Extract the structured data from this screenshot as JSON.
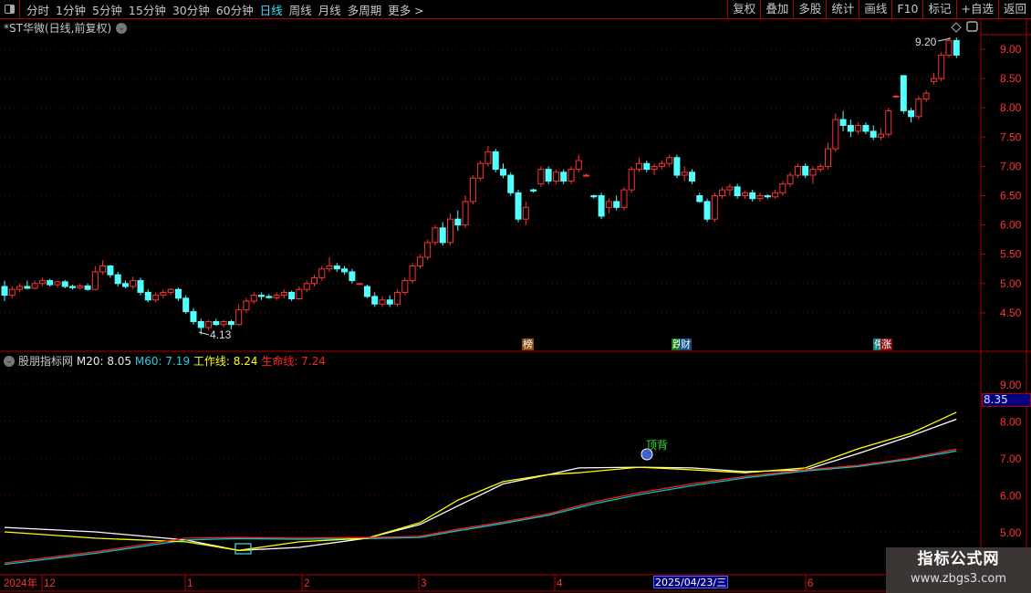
{
  "toolbar": {
    "timeframes": [
      "分时",
      "1分钟",
      "5分钟",
      "15分钟",
      "30分钟",
      "60分钟",
      "日线",
      "周线",
      "月线",
      "多周期",
      "更多 >"
    ],
    "active": "日线",
    "right_buttons": [
      "复权",
      "叠加",
      "多股",
      "统计",
      "画线",
      "F10",
      "标记",
      "+自选",
      "返回"
    ]
  },
  "stock_title": "*ST华微(日线,前复权)",
  "indicator": {
    "name": "股朋指标网",
    "m20_label": "M20: 8.05",
    "m60_label": "M60: 7.19",
    "work_label": "工作线: 8.24",
    "life_label": "生命线: 7.24",
    "signal_label": "顶背",
    "current_value": "8.35",
    "axis_labels": [
      "9.00",
      "8.00",
      "7.00",
      "6.00",
      "5.00"
    ]
  },
  "markers": [
    {
      "text": "榜",
      "color": "#8a4a10"
    },
    {
      "text": "跌",
      "color": "#107a10"
    },
    {
      "text": "财",
      "color": "#104a8a"
    },
    {
      "text": "停",
      "color": "#108080"
    },
    {
      "text": "涨",
      "color": "#8a1010"
    }
  ],
  "time_axis": {
    "labels": [
      "2024年",
      "12",
      "1",
      "2",
      "3",
      "4",
      "6"
    ],
    "cursor_date": "2025/04/23/三"
  },
  "watermark": {
    "line1": "指标公式网",
    "line2": "www.zbgs3.com"
  },
  "colors": {
    "up": "#ff3232",
    "down": "#54ffff",
    "m20": "#ffffff",
    "m60": "#00c8c8",
    "work": "#ffff00",
    "life": "#ff2020",
    "grid": "#b00000"
  },
  "chart_data": [
    {
      "type": "candlestick",
      "title": "*ST华微(日线,前复权)",
      "ylim": [
        4.13,
        9.2
      ],
      "y_ticks": [
        "9.00",
        "8.50",
        "8.00",
        "7.50",
        "7.00",
        "6.50",
        "6.00",
        "5.50",
        "5.00",
        "4.50"
      ],
      "high_label": "9.20",
      "low_label": "4.13",
      "ohlc": [
        [
          4.95,
          5.05,
          4.7,
          4.8
        ],
        [
          4.8,
          4.95,
          4.75,
          4.9
        ],
        [
          4.9,
          5.0,
          4.85,
          4.95
        ],
        [
          4.95,
          5.05,
          4.9,
          4.92
        ],
        [
          4.92,
          5.05,
          4.9,
          5.0
        ],
        [
          5.0,
          5.1,
          4.95,
          5.05
        ],
        [
          5.05,
          5.08,
          4.95,
          4.98
        ],
        [
          4.98,
          5.05,
          4.93,
          5.03
        ],
        [
          5.03,
          5.06,
          4.92,
          4.95
        ],
        [
          4.95,
          4.98,
          4.9,
          4.93
        ],
        [
          4.93,
          5.0,
          4.9,
          4.96
        ],
        [
          4.96,
          5.0,
          4.88,
          4.9
        ],
        [
          4.9,
          5.3,
          4.88,
          5.2
        ],
        [
          5.2,
          5.4,
          5.15,
          5.3
        ],
        [
          5.3,
          5.32,
          5.1,
          5.15
        ],
        [
          5.15,
          5.2,
          4.95,
          5.0
        ],
        [
          5.0,
          5.05,
          4.92,
          4.95
        ],
        [
          4.95,
          5.12,
          4.9,
          5.05
        ],
        [
          5.05,
          5.1,
          4.8,
          4.85
        ],
        [
          4.85,
          4.9,
          4.68,
          4.72
        ],
        [
          4.72,
          4.85,
          4.68,
          4.8
        ],
        [
          4.8,
          4.9,
          4.75,
          4.85
        ],
        [
          4.85,
          4.92,
          4.8,
          4.9
        ],
        [
          4.9,
          4.93,
          4.7,
          4.75
        ],
        [
          4.75,
          4.8,
          4.48,
          4.52
        ],
        [
          4.52,
          4.58,
          4.3,
          4.35
        ],
        [
          4.35,
          4.4,
          4.13,
          4.25
        ],
        [
          4.25,
          4.38,
          4.2,
          4.35
        ],
        [
          4.35,
          4.4,
          4.28,
          4.3
        ],
        [
          4.3,
          4.38,
          4.25,
          4.35
        ],
        [
          4.35,
          4.38,
          4.22,
          4.3
        ],
        [
          4.3,
          4.65,
          4.28,
          4.55
        ],
        [
          4.55,
          4.75,
          4.5,
          4.7
        ],
        [
          4.7,
          4.85,
          4.65,
          4.8
        ],
        [
          4.8,
          4.85,
          4.72,
          4.78
        ],
        [
          4.78,
          4.82,
          4.74,
          4.76
        ],
        [
          4.76,
          4.85,
          4.72,
          4.8
        ],
        [
          4.8,
          4.9,
          4.75,
          4.85
        ],
        [
          4.85,
          4.88,
          4.7,
          4.74
        ],
        [
          4.74,
          4.95,
          4.72,
          4.9
        ],
        [
          4.9,
          5.05,
          4.85,
          5.0
        ],
        [
          5.0,
          5.15,
          4.95,
          5.1
        ],
        [
          5.1,
          5.3,
          5.05,
          5.25
        ],
        [
          5.25,
          5.45,
          5.2,
          5.3
        ],
        [
          5.3,
          5.35,
          5.2,
          5.25
        ],
        [
          5.25,
          5.3,
          5.15,
          5.2
        ],
        [
          5.2,
          5.25,
          5.0,
          5.05
        ],
        [
          5.0,
          5.0,
          4.98,
          5.0
        ],
        [
          4.95,
          4.98,
          4.75,
          4.78
        ],
        [
          4.78,
          4.85,
          4.6,
          4.65
        ],
        [
          4.65,
          4.78,
          4.6,
          4.72
        ],
        [
          4.72,
          4.8,
          4.6,
          4.65
        ],
        [
          4.65,
          4.9,
          4.6,
          4.85
        ],
        [
          4.85,
          5.1,
          4.8,
          5.05
        ],
        [
          5.05,
          5.35,
          5.0,
          5.3
        ],
        [
          5.3,
          5.5,
          5.25,
          5.45
        ],
        [
          5.45,
          5.75,
          5.4,
          5.7
        ],
        [
          5.7,
          6.0,
          5.65,
          5.95
        ],
        [
          5.95,
          6.05,
          5.65,
          5.7
        ],
        [
          5.7,
          6.2,
          5.65,
          6.1
        ],
        [
          6.1,
          6.25,
          5.9,
          6.0
        ],
        [
          6.0,
          6.5,
          5.95,
          6.4
        ],
        [
          6.4,
          6.85,
          6.35,
          6.8
        ],
        [
          6.8,
          7.1,
          6.75,
          7.05
        ],
        [
          7.05,
          7.35,
          7.0,
          7.25
        ],
        [
          7.25,
          7.3,
          6.9,
          6.95
        ],
        [
          6.95,
          7.05,
          6.8,
          6.85
        ],
        [
          6.85,
          6.9,
          6.5,
          6.55
        ],
        [
          6.55,
          6.6,
          6.05,
          6.1
        ],
        [
          6.1,
          6.4,
          6.0,
          6.3
        ],
        [
          6.6,
          6.62,
          6.55,
          6.58
        ],
        [
          6.7,
          7.0,
          6.65,
          6.95
        ],
        [
          6.95,
          7.0,
          6.7,
          6.75
        ],
        [
          6.75,
          6.95,
          6.7,
          6.9
        ],
        [
          6.9,
          6.95,
          6.7,
          6.75
        ],
        [
          6.75,
          7.0,
          6.7,
          6.95
        ],
        [
          6.95,
          7.2,
          6.9,
          7.1
        ],
        [
          6.85,
          6.88,
          6.82,
          6.85
        ],
        [
          6.5,
          6.52,
          6.45,
          6.48
        ],
        [
          6.5,
          6.55,
          6.1,
          6.15
        ],
        [
          6.3,
          6.45,
          6.2,
          6.4
        ],
        [
          6.4,
          6.5,
          6.25,
          6.3
        ],
        [
          6.3,
          6.65,
          6.25,
          6.6
        ],
        [
          6.6,
          7.0,
          6.55,
          6.95
        ],
        [
          6.95,
          7.15,
          6.9,
          7.05
        ],
        [
          7.05,
          7.1,
          6.9,
          6.95
        ],
        [
          6.95,
          7.05,
          6.85,
          7.0
        ],
        [
          7.0,
          7.1,
          6.95,
          7.05
        ],
        [
          7.05,
          7.2,
          7.0,
          7.15
        ],
        [
          7.15,
          7.2,
          6.8,
          6.85
        ],
        [
          6.85,
          7.0,
          6.75,
          6.9
        ],
        [
          6.9,
          6.95,
          6.7,
          6.75
        ],
        [
          6.5,
          6.55,
          6.38,
          6.4
        ],
        [
          6.4,
          6.45,
          6.05,
          6.1
        ],
        [
          6.1,
          6.55,
          6.05,
          6.5
        ],
        [
          6.5,
          6.65,
          6.45,
          6.6
        ],
        [
          6.6,
          6.7,
          6.5,
          6.65
        ],
        [
          6.65,
          6.7,
          6.45,
          6.5
        ],
        [
          6.5,
          6.58,
          6.45,
          6.55
        ],
        [
          6.55,
          6.6,
          6.4,
          6.45
        ],
        [
          6.45,
          6.55,
          6.4,
          6.5
        ],
        [
          6.5,
          6.52,
          6.45,
          6.48
        ],
        [
          6.48,
          6.6,
          6.45,
          6.55
        ],
        [
          6.55,
          6.75,
          6.5,
          6.7
        ],
        [
          6.7,
          6.9,
          6.65,
          6.85
        ],
        [
          6.85,
          7.05,
          6.8,
          7.0
        ],
        [
          7.0,
          7.05,
          6.8,
          6.85
        ],
        [
          6.85,
          7.0,
          6.7,
          6.95
        ],
        [
          6.95,
          7.05,
          6.9,
          7.0
        ],
        [
          7.0,
          7.4,
          6.95,
          7.3
        ],
        [
          7.3,
          7.9,
          7.25,
          7.8
        ],
        [
          7.8,
          7.95,
          7.6,
          7.7
        ],
        [
          7.7,
          7.8,
          7.5,
          7.6
        ],
        [
          7.6,
          7.75,
          7.55,
          7.7
        ],
        [
          7.7,
          7.75,
          7.55,
          7.6
        ],
        [
          7.6,
          7.7,
          7.45,
          7.5
        ],
        [
          7.5,
          7.65,
          7.45,
          7.55
        ],
        [
          7.55,
          8.0,
          7.5,
          7.95
        ],
        [
          8.2,
          8.22,
          8.18,
          8.2
        ],
        [
          8.55,
          8.55,
          7.9,
          7.95
        ],
        [
          7.95,
          8.0,
          7.75,
          7.85
        ],
        [
          7.85,
          8.2,
          7.8,
          8.15
        ],
        [
          8.15,
          8.3,
          8.1,
          8.25
        ],
        [
          8.45,
          8.6,
          8.4,
          8.5
        ],
        [
          8.5,
          8.95,
          8.45,
          8.9
        ],
        [
          8.9,
          9.2,
          8.85,
          9.15
        ],
        [
          9.15,
          9.2,
          8.85,
          8.9
        ]
      ]
    },
    {
      "type": "line",
      "ylim": [
        4.5,
        9.5
      ],
      "series": [
        {
          "name": "M20",
          "color": "#ffffff",
          "points": [
            [
              0,
              5.12
            ],
            [
              12,
              5.0
            ],
            [
              24,
              4.78
            ],
            [
              31,
              4.5
            ],
            [
              39,
              4.58
            ],
            [
              48,
              4.83
            ],
            [
              55,
              5.2
            ],
            [
              60,
              5.7
            ],
            [
              66,
              6.3
            ],
            [
              72,
              6.55
            ],
            [
              76,
              6.73
            ],
            [
              84,
              6.75
            ],
            [
              91,
              6.73
            ],
            [
              98,
              6.63
            ],
            [
              106,
              6.68
            ],
            [
              113,
              7.12
            ],
            [
              120,
              7.6
            ],
            [
              126,
              8.05
            ]
          ]
        },
        {
          "name": "M60",
          "color": "#00c8c8",
          "points": [
            [
              0,
              4.12
            ],
            [
              12,
              4.42
            ],
            [
              24,
              4.78
            ],
            [
              31,
              4.82
            ],
            [
              39,
              4.8
            ],
            [
              48,
              4.82
            ],
            [
              55,
              4.85
            ],
            [
              60,
              5.03
            ],
            [
              66,
              5.23
            ],
            [
              72,
              5.45
            ],
            [
              78,
              5.76
            ],
            [
              84,
              6.01
            ],
            [
              91,
              6.25
            ],
            [
              98,
              6.46
            ],
            [
              106,
              6.65
            ],
            [
              113,
              6.77
            ],
            [
              120,
              6.97
            ],
            [
              126,
              7.19
            ]
          ]
        },
        {
          "name": "工作线",
          "color": "#ffff00",
          "points": [
            [
              0,
              5.0
            ],
            [
              12,
              4.83
            ],
            [
              24,
              4.73
            ],
            [
              31,
              4.5
            ],
            [
              39,
              4.73
            ],
            [
              48,
              4.83
            ],
            [
              55,
              5.25
            ],
            [
              60,
              5.86
            ],
            [
              66,
              6.36
            ],
            [
              72,
              6.55
            ],
            [
              76,
              6.6
            ],
            [
              84,
              6.75
            ],
            [
              91,
              6.68
            ],
            [
              98,
              6.6
            ],
            [
              106,
              6.73
            ],
            [
              113,
              7.25
            ],
            [
              120,
              7.67
            ],
            [
              126,
              8.24
            ]
          ]
        },
        {
          "name": "生命线",
          "color": "#ff2020",
          "points": [
            [
              0,
              4.16
            ],
            [
              12,
              4.46
            ],
            [
              24,
              4.83
            ],
            [
              31,
              4.85
            ],
            [
              39,
              4.83
            ],
            [
              48,
              4.85
            ],
            [
              55,
              4.88
            ],
            [
              60,
              5.07
            ],
            [
              66,
              5.27
            ],
            [
              72,
              5.49
            ],
            [
              78,
              5.81
            ],
            [
              84,
              6.06
            ],
            [
              91,
              6.3
            ],
            [
              98,
              6.5
            ],
            [
              106,
              6.68
            ],
            [
              113,
              6.8
            ],
            [
              120,
              7.0
            ],
            [
              126,
              7.24
            ]
          ]
        }
      ]
    }
  ]
}
